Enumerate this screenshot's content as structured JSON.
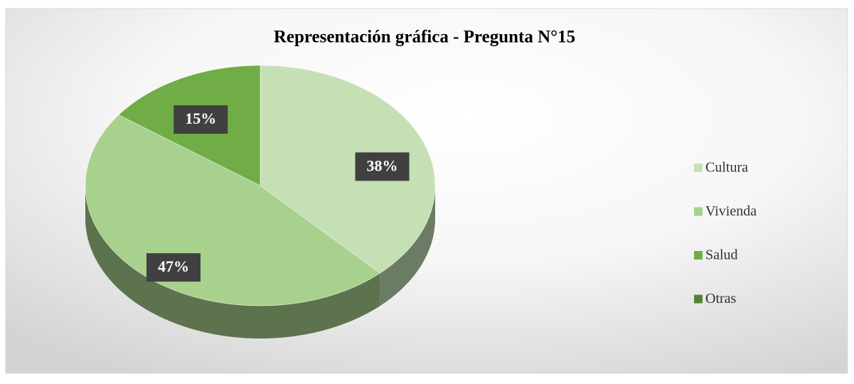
{
  "chart_data": {
    "type": "pie",
    "title": "Representación gráfica - Pregunta N°15",
    "categories": [
      "Cultura",
      "Vivienda",
      "Salud",
      "Otras"
    ],
    "values": [
      38,
      47,
      15,
      0
    ],
    "value_labels": [
      "38%",
      "47%",
      "15%",
      null
    ],
    "colors": [
      "#c5e0b4",
      "#a9d18e",
      "#70ad47",
      "#548235"
    ],
    "legend": "right"
  }
}
